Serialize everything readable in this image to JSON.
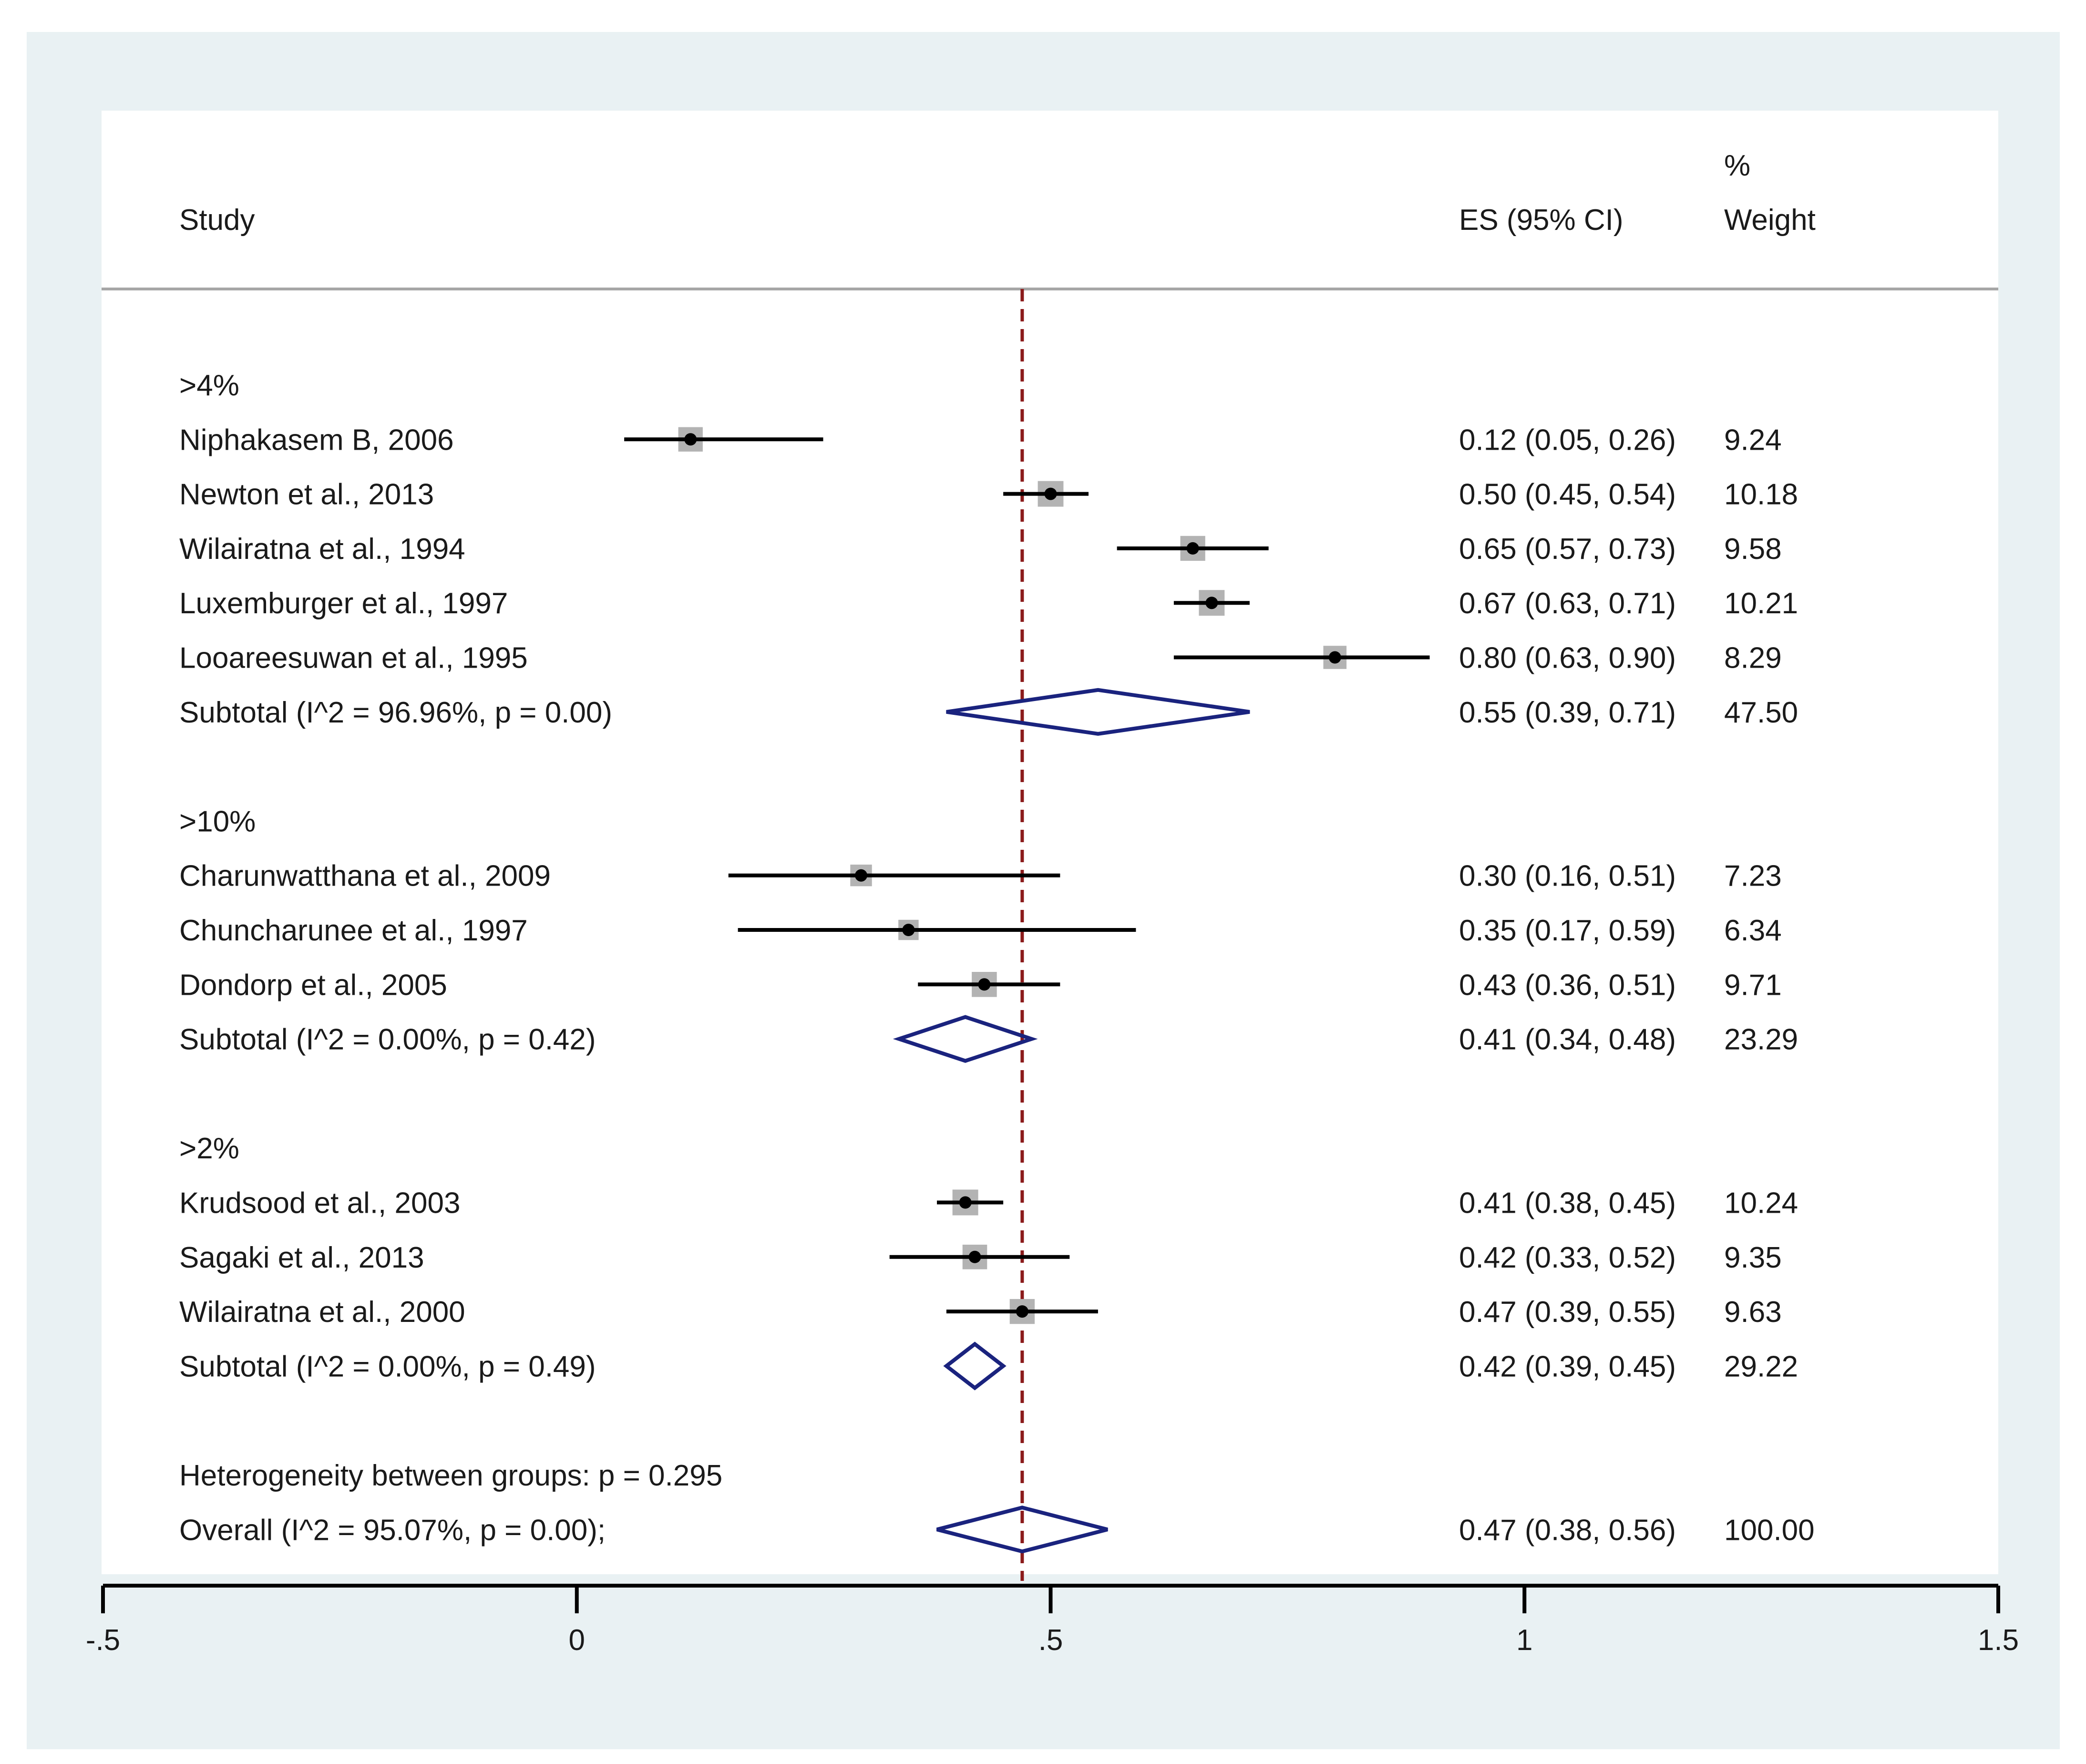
{
  "chart_data": {
    "type": "forest",
    "header": {
      "study": "Study",
      "es": "ES (95% CI)",
      "weight_line1": "%",
      "weight_line2": "Weight"
    },
    "xlim": [
      -0.5,
      1.5
    ],
    "ticks": [
      {
        "value": -0.5,
        "label": "-.5"
      },
      {
        "value": 0,
        "label": "0"
      },
      {
        "value": 0.5,
        "label": ".5"
      },
      {
        "value": 1,
        "label": "1"
      },
      {
        "value": 1.5,
        "label": "1.5"
      }
    ],
    "reference_line": 0.47,
    "groups": [
      {
        "label": ">4%",
        "studies": [
          {
            "name": "Niphakasem B, 2006",
            "es": 0.12,
            "lo": 0.05,
            "hi": 0.26,
            "ci_text": "0.12 (0.05, 0.26)",
            "weight": "9.24"
          },
          {
            "name": "Newton et al., 2013",
            "es": 0.5,
            "lo": 0.45,
            "hi": 0.54,
            "ci_text": "0.50 (0.45, 0.54)",
            "weight": "10.18"
          },
          {
            "name": "Wilairatna et al., 1994",
            "es": 0.65,
            "lo": 0.57,
            "hi": 0.73,
            "ci_text": "0.65 (0.57, 0.73)",
            "weight": "9.58"
          },
          {
            "name": "Luxemburger et al., 1997",
            "es": 0.67,
            "lo": 0.63,
            "hi": 0.71,
            "ci_text": "0.67 (0.63, 0.71)",
            "weight": "10.21"
          },
          {
            "name": "Looareesuwan et al., 1995",
            "es": 0.8,
            "lo": 0.63,
            "hi": 0.9,
            "ci_text": "0.80 (0.63, 0.90)",
            "weight": "8.29"
          }
        ],
        "subtotal": {
          "label": "Subtotal  (I^2 = 96.96%, p = 0.00)",
          "es": 0.55,
          "lo": 0.39,
          "hi": 0.71,
          "ci_text": "0.55 (0.39, 0.71)",
          "weight": "47.50"
        }
      },
      {
        "label": ">10%",
        "studies": [
          {
            "name": "Charunwatthana et al., 2009",
            "es": 0.3,
            "lo": 0.16,
            "hi": 0.51,
            "ci_text": "0.30 (0.16, 0.51)",
            "weight": "7.23"
          },
          {
            "name": "Chuncharunee et al., 1997",
            "es": 0.35,
            "lo": 0.17,
            "hi": 0.59,
            "ci_text": "0.35 (0.17, 0.59)",
            "weight": "6.34"
          },
          {
            "name": "Dondorp et al., 2005",
            "es": 0.43,
            "lo": 0.36,
            "hi": 0.51,
            "ci_text": "0.43 (0.36, 0.51)",
            "weight": "9.71"
          }
        ],
        "subtotal": {
          "label": "Subtotal  (I^2 = 0.00%, p = 0.42)",
          "es": 0.41,
          "lo": 0.34,
          "hi": 0.48,
          "ci_text": "0.41 (0.34, 0.48)",
          "weight": "23.29"
        }
      },
      {
        "label": ">2%",
        "studies": [
          {
            "name": "Krudsood et al., 2003",
            "es": 0.41,
            "lo": 0.38,
            "hi": 0.45,
            "ci_text": "0.41 (0.38, 0.45)",
            "weight": "10.24"
          },
          {
            "name": "Sagaki et al., 2013",
            "es": 0.42,
            "lo": 0.33,
            "hi": 0.52,
            "ci_text": "0.42 (0.33, 0.52)",
            "weight": "9.35"
          },
          {
            "name": "Wilairatna et al., 2000",
            "es": 0.47,
            "lo": 0.39,
            "hi": 0.55,
            "ci_text": "0.47 (0.39, 0.55)",
            "weight": "9.63"
          }
        ],
        "subtotal": {
          "label": "Subtotal  (I^2 = 0.00%, p = 0.49)",
          "es": 0.42,
          "lo": 0.39,
          "hi": 0.45,
          "ci_text": "0.42 (0.39, 0.45)",
          "weight": "29.22"
        }
      }
    ],
    "heterogeneity_text": "Heterogeneity between groups: p = 0.295",
    "overall": {
      "label": "Overall  (I^2 = 95.07%, p = 0.00);",
      "es": 0.47,
      "lo": 0.38,
      "hi": 0.56,
      "ci_text": "0.47 (0.38, 0.56)",
      "weight": "100.00"
    },
    "colors": {
      "outer_background": "#e9f1f3",
      "plot_background": "#ffffff",
      "text": "#1a1a1a",
      "ci_line": "#000000",
      "weight_box": "#b3b3b3",
      "point": "#000000",
      "diamond": "#1a237e",
      "reference_line": "#8b1a1a",
      "header_rule": "#a6a6a6"
    }
  }
}
